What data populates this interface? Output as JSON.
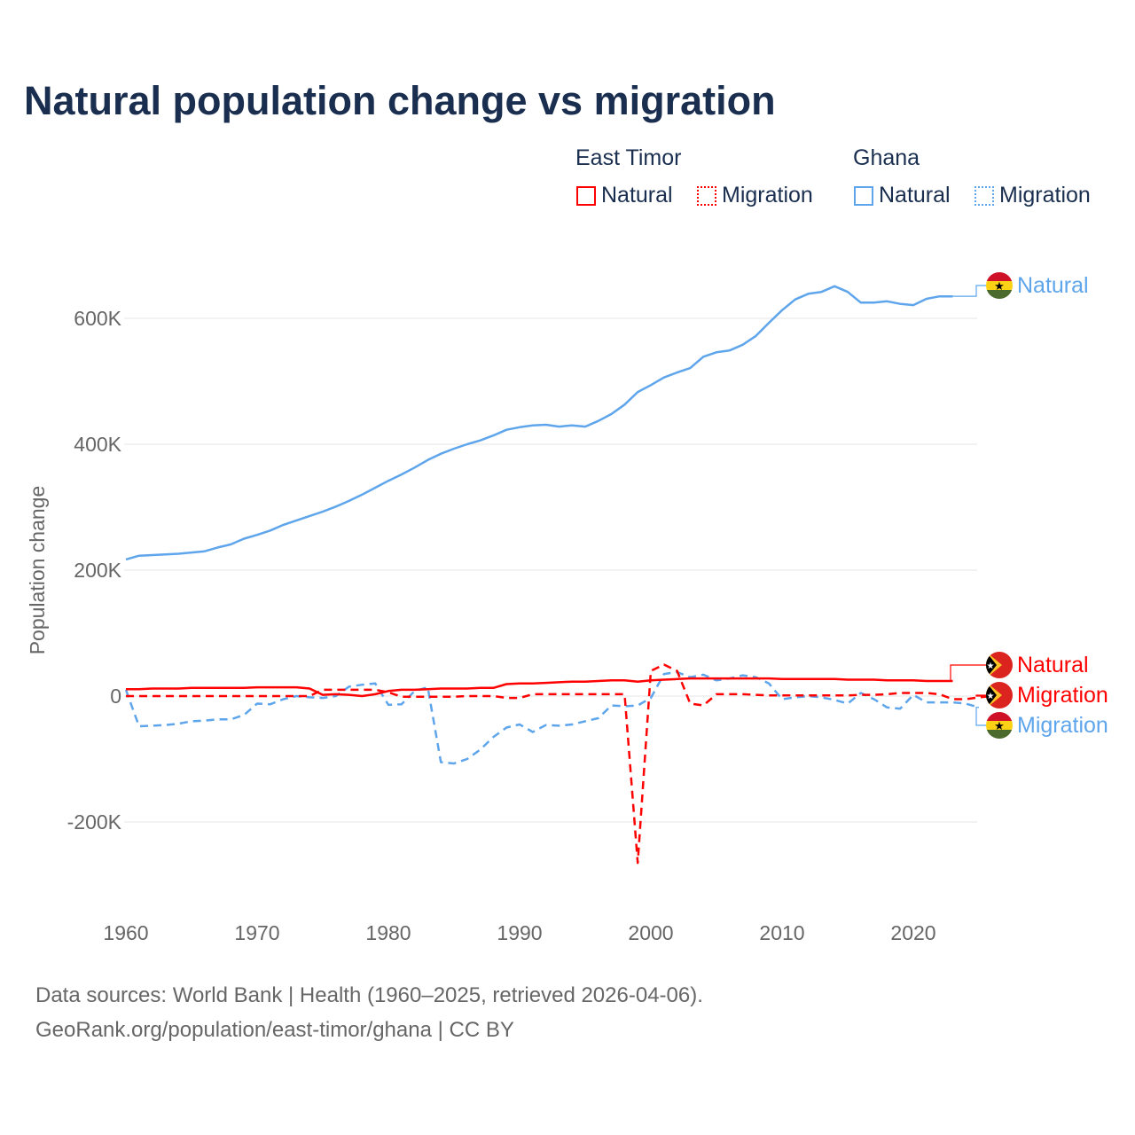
{
  "chart_data": {
    "type": "line",
    "title": "Natural population change vs migration",
    "xlabel": "",
    "ylabel": "Population change",
    "xlim": [
      1960,
      2025
    ],
    "ylim": [
      -270000,
      700000
    ],
    "x_ticks": [
      "1960",
      "1970",
      "1980",
      "1990",
      "2000",
      "2010",
      "2020"
    ],
    "y_ticks": [
      {
        "value": -200000,
        "label": "-200K"
      },
      {
        "value": 0,
        "label": "0"
      },
      {
        "value": 200000,
        "label": "200K"
      },
      {
        "value": 400000,
        "label": "400K"
      },
      {
        "value": 600000,
        "label": "600K"
      }
    ],
    "grid": true,
    "legend": {
      "placement": "top-right",
      "groups": [
        {
          "label": "East Timor",
          "items": [
            "Natural",
            "Migration"
          ]
        },
        {
          "label": "Ghana",
          "items": [
            "Natural",
            "Migration"
          ]
        }
      ]
    },
    "series": [
      {
        "name": "Ghana Natural",
        "country": "Ghana",
        "kind": "Natural",
        "color": "#5ea5ec",
        "dash": "solid",
        "start_year": 1960,
        "values_k": [
          217,
          223,
          224,
          225,
          226,
          228,
          230,
          236,
          241,
          250,
          256,
          263,
          272,
          279,
          286,
          293,
          301,
          310,
          320,
          331,
          342,
          352,
          363,
          375,
          385,
          393,
          400,
          406,
          414,
          423,
          427,
          430,
          431,
          428,
          430,
          428,
          437,
          448,
          463,
          483,
          494,
          506,
          514,
          521,
          539,
          546,
          549,
          558,
          572,
          593,
          613,
          630,
          639,
          642,
          651,
          642,
          625,
          625,
          627,
          623,
          621,
          631,
          635,
          635
        ]
      },
      {
        "name": "Ghana Migration",
        "country": "Ghana",
        "kind": "Migration",
        "color": "#5ea5ec",
        "dash": "dashed",
        "start_year": 1960,
        "values_k": [
          10,
          -48,
          -47,
          -46,
          -44,
          -40,
          -39,
          -37,
          -37,
          -30,
          -12,
          -13,
          -5,
          0,
          -2,
          -3,
          0,
          15,
          18,
          20,
          -14,
          -13,
          8,
          14,
          -105,
          -107,
          -100,
          -85,
          -65,
          -50,
          -45,
          -57,
          -46,
          -47,
          -45,
          -40,
          -35,
          -15,
          -16,
          -15,
          -3,
          35,
          38,
          30,
          34,
          25,
          28,
          33,
          30,
          20,
          -5,
          -2,
          0,
          -2,
          -6,
          -12,
          5,
          -5,
          -18,
          -20,
          2,
          -10,
          -10,
          -10,
          -12,
          -18
        ]
      },
      {
        "name": "East Timor Natural",
        "country": "East Timor",
        "kind": "Natural",
        "color": "#ff0000",
        "dash": "solid",
        "start_year": 1960,
        "values_k": [
          11,
          11,
          12,
          12,
          12,
          13,
          13,
          13,
          13,
          13,
          14,
          14,
          14,
          14,
          12,
          2,
          3,
          2,
          0,
          3,
          8,
          10,
          10,
          11,
          12,
          12,
          12,
          13,
          13,
          19,
          20,
          20,
          21,
          22,
          23,
          23,
          24,
          25,
          25,
          23,
          25,
          26,
          27,
          28,
          28,
          28,
          28,
          28,
          28,
          28,
          27,
          27,
          27,
          27,
          27,
          26,
          26,
          26,
          25,
          25,
          25,
          24,
          24,
          24
        ]
      },
      {
        "name": "East Timor Migration",
        "country": "East Timor",
        "kind": "Migration",
        "color": "#ff0000",
        "dash": "dashed",
        "start_year": 1960,
        "values_k": [
          0,
          0,
          0,
          0,
          0,
          0,
          0,
          0,
          0,
          0,
          0,
          0,
          0,
          0,
          0,
          10,
          10,
          10,
          10,
          10,
          6,
          -1,
          -1,
          -1,
          -1,
          -1,
          0,
          0,
          0,
          -3,
          -3,
          3,
          3,
          3,
          3,
          3,
          3,
          3,
          3,
          -265,
          40,
          50,
          40,
          -12,
          -15,
          3,
          3,
          3,
          2,
          1,
          1,
          1,
          1,
          1,
          1,
          1,
          2,
          2,
          3,
          5,
          5,
          5,
          3,
          -5,
          -5,
          -2,
          0
        ]
      }
    ],
    "end_labels": [
      {
        "series": "Ghana Natural",
        "label": "Natural",
        "flag": "ghana-flag"
      },
      {
        "series": "East Timor Natural",
        "label": "Natural",
        "flag": "east-timor-flag"
      },
      {
        "series": "East Timor Migration",
        "label": "Migration",
        "flag": "east-timor-flag"
      },
      {
        "series": "Ghana Migration",
        "label": "Migration",
        "flag": "ghana-flag"
      }
    ]
  },
  "footer": {
    "line1": "Data sources: World Bank | Health (1960–2025, retrieved 2026-04-06).",
    "line2": "GeoRank.org/population/east-timor/ghana | CC BY"
  }
}
